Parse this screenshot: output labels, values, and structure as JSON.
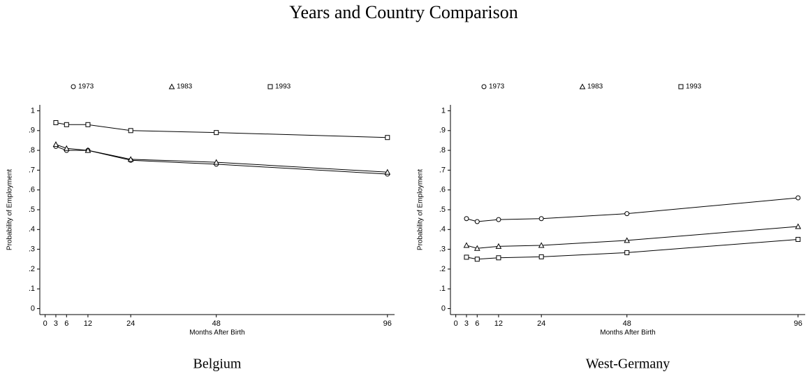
{
  "title": "Years and Country Comparison",
  "chart_data": [
    {
      "type": "line",
      "caption": "Belgium",
      "x_label": "Months After Birth",
      "y_label": "Probability of Employment",
      "x": [
        3,
        6,
        12,
        24,
        48,
        96
      ],
      "series": [
        {
          "name": "1973",
          "marker": "circle",
          "color": "#000000",
          "values": [
            0.82,
            0.8,
            0.8,
            0.75,
            0.73,
            0.68
          ]
        },
        {
          "name": "1983",
          "marker": "triangle",
          "color": "#000000",
          "values": [
            0.83,
            0.81,
            0.8,
            0.755,
            0.74,
            0.69
          ]
        },
        {
          "name": "1993",
          "marker": "square",
          "color": "#000000",
          "values": [
            0.94,
            0.93,
            0.93,
            0.9,
            0.89,
            0.865
          ]
        }
      ],
      "xlim": [
        -1.5,
        98
      ],
      "xticks": [
        0,
        3,
        6,
        12,
        24,
        48,
        96
      ],
      "ylim": [
        -0.03,
        1.03
      ],
      "yticks": [
        0,
        {
          "value": 0.1,
          "label": ".1"
        },
        {
          "value": 0.2,
          "label": ".2"
        },
        {
          "value": 0.3,
          "label": ".3"
        },
        {
          "value": 0.4,
          "label": ".4"
        },
        {
          "value": 0.5,
          "label": ".5"
        },
        {
          "value": 0.6,
          "label": ".6"
        },
        {
          "value": 0.7,
          "label": ".7"
        },
        {
          "value": 0.8,
          "label": ".8"
        },
        {
          "value": 0.9,
          "label": ".9"
        },
        1
      ],
      "legend": "top"
    },
    {
      "type": "line",
      "caption": "West-Germany",
      "x_label": "Months After Birth",
      "y_label": "Probability of Employment",
      "x": [
        3,
        6,
        12,
        24,
        48,
        96
      ],
      "series": [
        {
          "name": "1973",
          "marker": "circle",
          "color": "#000000",
          "values": [
            0.455,
            0.44,
            0.45,
            0.455,
            0.48,
            0.56
          ]
        },
        {
          "name": "1983",
          "marker": "triangle",
          "color": "#000000",
          "values": [
            0.32,
            0.305,
            0.315,
            0.32,
            0.345,
            0.415
          ]
        },
        {
          "name": "1993",
          "marker": "square",
          "color": "#000000",
          "values": [
            0.26,
            0.25,
            0.257,
            0.262,
            0.283,
            0.35
          ]
        }
      ],
      "xlim": [
        -1.5,
        98
      ],
      "xticks": [
        0,
        3,
        6,
        12,
        24,
        48,
        96
      ],
      "ylim": [
        -0.03,
        1.03
      ],
      "yticks": [
        0,
        {
          "value": 0.1,
          "label": ".1"
        },
        {
          "value": 0.2,
          "label": ".2"
        },
        {
          "value": 0.3,
          "label": ".3"
        },
        {
          "value": 0.4,
          "label": ".4"
        },
        {
          "value": 0.5,
          "label": ".5"
        },
        {
          "value": 0.6,
          "label": ".6"
        },
        {
          "value": 0.7,
          "label": ".7"
        },
        {
          "value": 0.8,
          "label": ".8"
        },
        {
          "value": 0.9,
          "label": ".9"
        },
        1
      ],
      "legend": "top"
    }
  ]
}
